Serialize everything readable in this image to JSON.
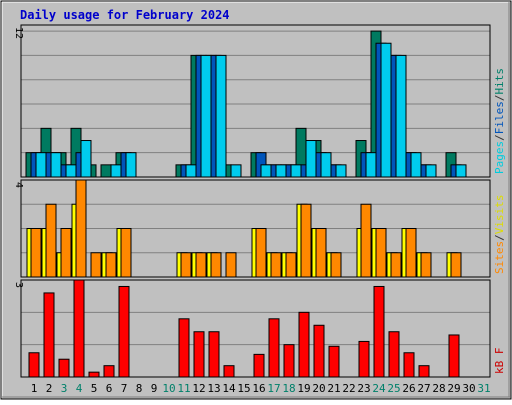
{
  "chart_data": {
    "type": "bar",
    "title": "Daily usage for February 2024",
    "days": [
      {
        "label": "1",
        "weekend": false
      },
      {
        "label": "2",
        "weekend": false
      },
      {
        "label": "3",
        "weekend": true
      },
      {
        "label": "4",
        "weekend": true
      },
      {
        "label": "5",
        "weekend": false
      },
      {
        "label": "6",
        "weekend": false
      },
      {
        "label": "7",
        "weekend": false
      },
      {
        "label": "8",
        "weekend": false
      },
      {
        "label": "9",
        "weekend": false
      },
      {
        "label": "10",
        "weekend": true
      },
      {
        "label": "11",
        "weekend": true
      },
      {
        "label": "12",
        "weekend": false
      },
      {
        "label": "13",
        "weekend": false
      },
      {
        "label": "14",
        "weekend": false
      },
      {
        "label": "15",
        "weekend": false
      },
      {
        "label": "16",
        "weekend": false
      },
      {
        "label": "17",
        "weekend": true
      },
      {
        "label": "18",
        "weekend": true
      },
      {
        "label": "19",
        "weekend": false
      },
      {
        "label": "20",
        "weekend": false
      },
      {
        "label": "21",
        "weekend": false
      },
      {
        "label": "22",
        "weekend": false
      },
      {
        "label": "23",
        "weekend": false
      },
      {
        "label": "24",
        "weekend": true
      },
      {
        "label": "25",
        "weekend": true
      },
      {
        "label": "26",
        "weekend": false
      },
      {
        "label": "27",
        "weekend": false
      },
      {
        "label": "28",
        "weekend": false
      },
      {
        "label": "29",
        "weekend": false
      },
      {
        "label": "30",
        "weekend": false
      },
      {
        "label": "31",
        "weekend": true
      }
    ],
    "panels": [
      {
        "id": "hits",
        "ymax_label": "12",
        "ymax": 12.5,
        "legend": [
          {
            "text": "Pages",
            "color": "#00ccdd"
          },
          {
            "text": "/",
            "color": "#333333"
          },
          {
            "text": "Files",
            "color": "#0055bb"
          },
          {
            "text": "/",
            "color": "#333333"
          },
          {
            "text": "Hits",
            "color": "#00806a"
          }
        ],
        "series": [
          {
            "name": "Hits",
            "color": "#007a60",
            "values": [
              2,
              4,
              2,
              4,
              1,
              1,
              2,
              0,
              0,
              0,
              1,
              10,
              10,
              1,
              0,
              2,
              1,
              1,
              4,
              3,
              1,
              0,
              3,
              12,
              10,
              2,
              1,
              0,
              2,
              0,
              0
            ]
          },
          {
            "name": "Files",
            "color": "#0055bb",
            "values": [
              2,
              2,
              1,
              2,
              0,
              0,
              2,
              0,
              0,
              0,
              1,
              10,
              10,
              0,
              0,
              2,
              1,
              1,
              1,
              2,
              1,
              0,
              2,
              11,
              10,
              2,
              1,
              0,
              1,
              0,
              0
            ]
          },
          {
            "name": "Pages",
            "color": "#00ccee",
            "values": [
              2,
              2,
              1,
              3,
              0,
              1,
              2,
              0,
              0,
              0,
              1,
              10,
              10,
              1,
              0,
              1,
              1,
              1,
              3,
              2,
              1,
              0,
              2,
              11,
              10,
              2,
              1,
              0,
              1,
              0,
              0
            ]
          }
        ]
      },
      {
        "id": "visits",
        "ymax_label": "4",
        "ymax": 4,
        "legend": [
          {
            "text": "Sites",
            "color": "#ff8800"
          },
          {
            "text": "/",
            "color": "#333333"
          },
          {
            "text": "Visits",
            "color": "#dddd00"
          }
        ],
        "series": [
          {
            "name": "Visits",
            "color": "#ffff00",
            "values": [
              2,
              2,
              1,
              3,
              0,
              1,
              2,
              0,
              0,
              0,
              1,
              1,
              1,
              0,
              0,
              2,
              1,
              1,
              3,
              2,
              1,
              0,
              2,
              2,
              1,
              2,
              1,
              0,
              1,
              0,
              0
            ]
          },
          {
            "name": "Sites",
            "color": "#ff8800",
            "values": [
              2,
              3,
              2,
              4,
              1,
              1,
              2,
              0,
              0,
              0,
              1,
              1,
              1,
              1,
              0,
              2,
              1,
              1,
              3,
              2,
              1,
              0,
              3,
              2,
              1,
              2,
              1,
              0,
              1,
              0,
              0
            ]
          }
        ]
      },
      {
        "id": "kbf",
        "ymax_label": "3",
        "ymax": 3,
        "legend": [
          {
            "text": "kB F",
            "color": "#cc0000"
          }
        ],
        "series": [
          {
            "name": "kB F",
            "color": "#ff0000",
            "values": [
              0.75,
              2.6,
              0.55,
              3.0,
              0.15,
              0.35,
              2.8,
              0,
              0,
              0,
              1.8,
              1.4,
              1.4,
              0.35,
              0,
              0.7,
              1.8,
              1.0,
              2.0,
              1.6,
              0.95,
              0,
              1.1,
              2.8,
              1.4,
              0.75,
              0.35,
              0,
              1.3,
              0,
              0
            ]
          }
        ]
      }
    ]
  }
}
